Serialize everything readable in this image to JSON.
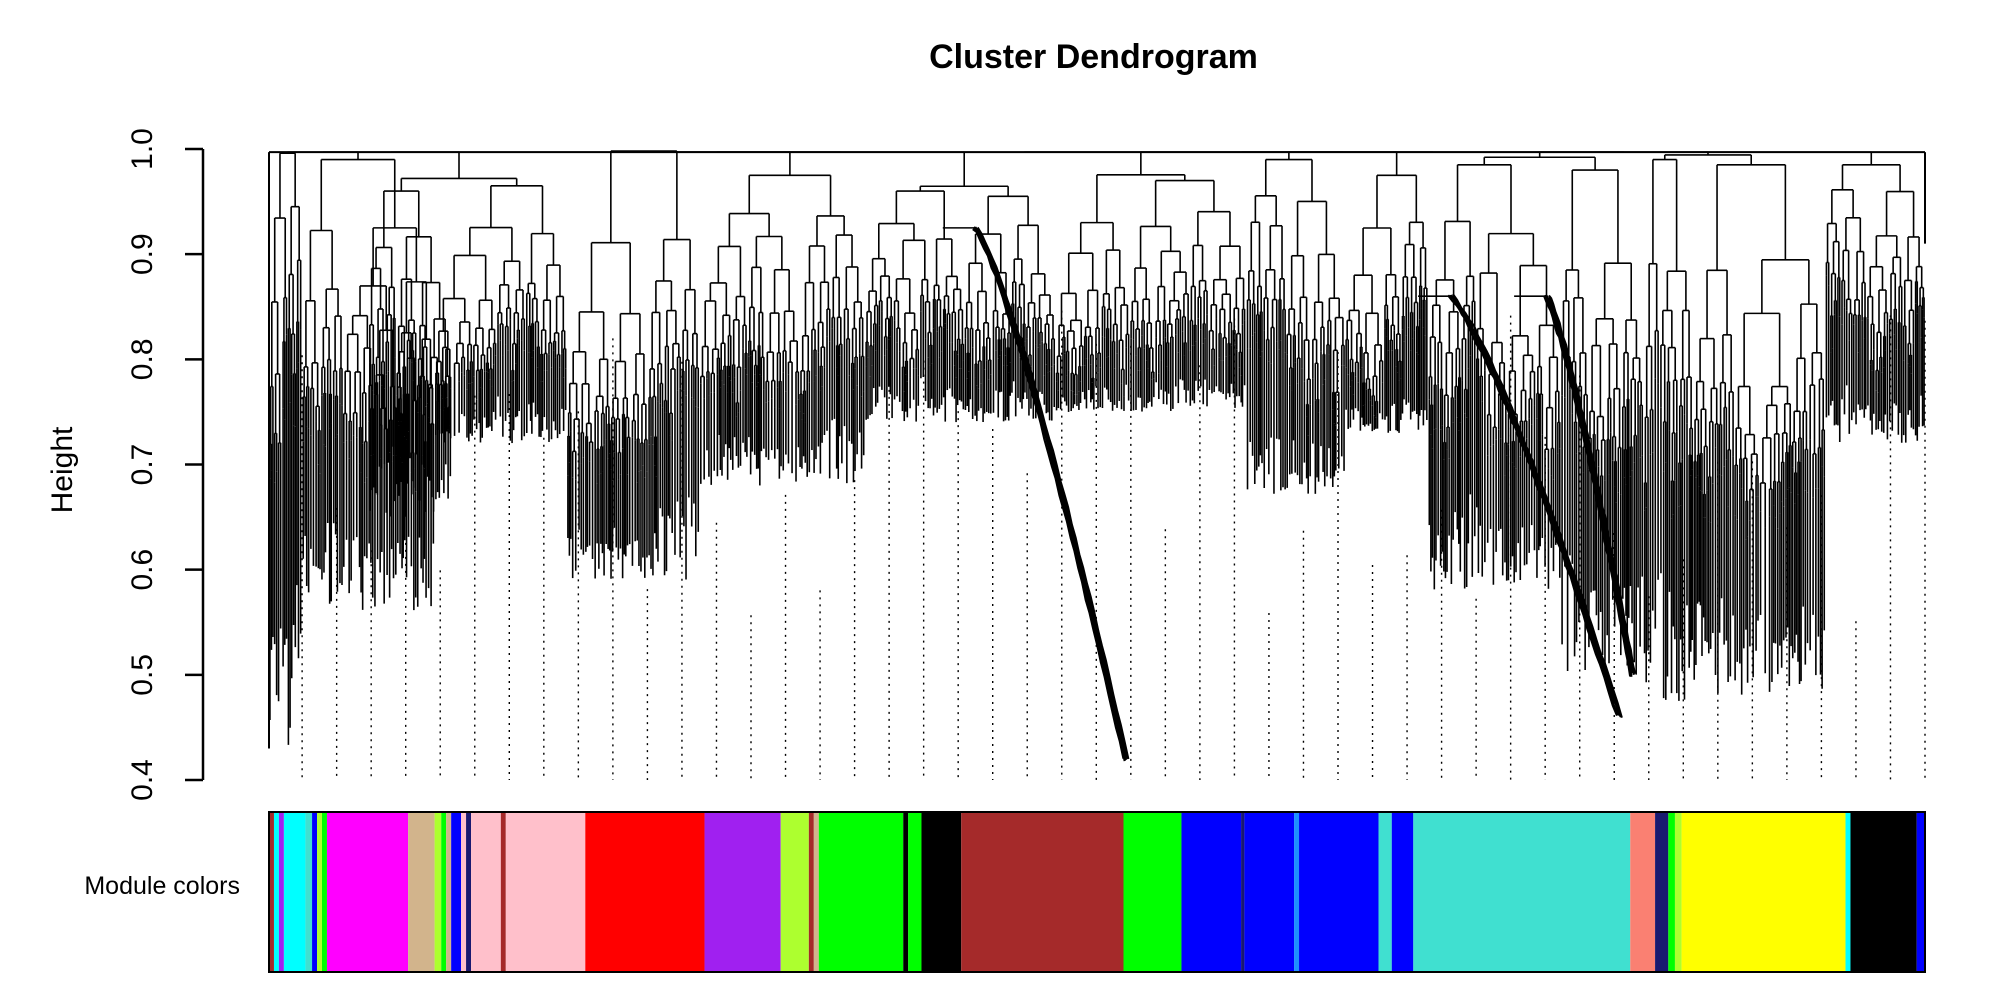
{
  "chart_data": {
    "type": "dendrogram",
    "title": "Cluster Dendrogram",
    "ylabel": "Height",
    "xlabel": "",
    "ylim": [
      0.4,
      1.0
    ],
    "yticks": [
      0.4,
      0.5,
      0.6,
      0.7,
      0.8,
      0.9,
      1.0
    ],
    "ytick_labels": [
      "0.4",
      "0.5",
      "0.6",
      "0.7",
      "0.8",
      "0.9",
      "1.0"
    ],
    "grid": false,
    "root_height": 0.997,
    "clusters": [
      {
        "name": "c1",
        "span": [
          0.0,
          0.02
        ],
        "top": 0.996,
        "min": 0.43
      },
      {
        "name": "c2",
        "span": [
          0.02,
          0.1
        ],
        "top": 0.99,
        "min": 0.56
      },
      {
        "name": "c3",
        "span": [
          0.06,
          0.11
        ],
        "top": 0.96,
        "min": 0.65
      },
      {
        "name": "c4",
        "span": [
          0.1,
          0.18
        ],
        "top": 0.965,
        "min": 0.72
      },
      {
        "name": "c5",
        "span": [
          0.18,
          0.26
        ],
        "top": 0.998,
        "min": 0.59
      },
      {
        "name": "c6",
        "span": [
          0.26,
          0.36
        ],
        "top": 0.975,
        "min": 0.68
      },
      {
        "name": "c7",
        "span": [
          0.36,
          0.42
        ],
        "top": 0.96,
        "min": 0.74
      },
      {
        "name": "c8",
        "span": [
          0.42,
          0.475
        ],
        "top": 0.955,
        "min": 0.74
      },
      {
        "name": "c9",
        "span": [
          0.475,
          0.52
        ],
        "top": 0.93,
        "min": 0.75
      },
      {
        "name": "c10",
        "span": [
          0.52,
          0.59
        ],
        "top": 0.97,
        "min": 0.75
      },
      {
        "name": "c11",
        "span": [
          0.59,
          0.65
        ],
        "top": 0.99,
        "min": 0.67
      },
      {
        "name": "c12",
        "span": [
          0.65,
          0.7
        ],
        "top": 0.975,
        "min": 0.73
      },
      {
        "name": "c13",
        "span": [
          0.7,
          0.78
        ],
        "top": 0.985,
        "min": 0.58
      },
      {
        "name": "c14",
        "span": [
          0.78,
          0.83
        ],
        "top": 0.98,
        "min": 0.5
      },
      {
        "name": "c15",
        "span": [
          0.83,
          0.86
        ],
        "top": 0.99,
        "min": 0.47
      },
      {
        "name": "c16",
        "span": [
          0.86,
          0.94
        ],
        "top": 0.985,
        "min": 0.48
      },
      {
        "name": "c17",
        "span": [
          0.94,
          1.0
        ],
        "top": 0.985,
        "min": 0.72
      }
    ],
    "deep_branches": [
      {
        "name": "d1",
        "x_start": 0.425,
        "x_end": 0.516,
        "top": 0.925,
        "bottom": 0.42
      },
      {
        "name": "d2",
        "x_start": 0.712,
        "x_end": 0.814,
        "top": 0.86,
        "bottom": 0.46
      },
      {
        "name": "d3",
        "x_start": 0.77,
        "x_end": 0.822,
        "top": 0.86,
        "bottom": 0.5
      }
    ],
    "module_colors_label": "Module colors",
    "module_colors": [
      {
        "color": "#A52A2A",
        "start": 0.0,
        "end": 0.003
      },
      {
        "color": "#00FFFF",
        "start": 0.003,
        "end": 0.006
      },
      {
        "color": "#A020F0",
        "start": 0.006,
        "end": 0.009
      },
      {
        "color": "#00FFFF",
        "start": 0.009,
        "end": 0.022
      },
      {
        "color": "#40E0D0",
        "start": 0.022,
        "end": 0.026
      },
      {
        "color": "#0000FF",
        "start": 0.026,
        "end": 0.029
      },
      {
        "color": "#ADFF2F",
        "start": 0.029,
        "end": 0.032
      },
      {
        "color": "#00FF00",
        "start": 0.032,
        "end": 0.035
      },
      {
        "color": "#FF00FF",
        "start": 0.035,
        "end": 0.084
      },
      {
        "color": "#D2B48C",
        "start": 0.084,
        "end": 0.1
      },
      {
        "color": "#ADFF2F",
        "start": 0.1,
        "end": 0.104
      },
      {
        "color": "#00FF00",
        "start": 0.104,
        "end": 0.107
      },
      {
        "color": "#D2B48C",
        "start": 0.107,
        "end": 0.11
      },
      {
        "color": "#0000FF",
        "start": 0.11,
        "end": 0.116
      },
      {
        "color": "#FFC0CB",
        "start": 0.116,
        "end": 0.119
      },
      {
        "color": "#191970",
        "start": 0.119,
        "end": 0.122
      },
      {
        "color": "#FFC0CB",
        "start": 0.122,
        "end": 0.14
      },
      {
        "color": "#A52A2A",
        "start": 0.14,
        "end": 0.143
      },
      {
        "color": "#FFC0CB",
        "start": 0.143,
        "end": 0.191
      },
      {
        "color": "#FF0000",
        "start": 0.191,
        "end": 0.263
      },
      {
        "color": "#A020F0",
        "start": 0.263,
        "end": 0.309
      },
      {
        "color": "#ADFF2F",
        "start": 0.309,
        "end": 0.326
      },
      {
        "color": "#A52A2A",
        "start": 0.326,
        "end": 0.329
      },
      {
        "color": "#D2B48C",
        "start": 0.329,
        "end": 0.332
      },
      {
        "color": "#00FF00",
        "start": 0.332,
        "end": 0.383
      },
      {
        "color": "#000000",
        "start": 0.383,
        "end": 0.386
      },
      {
        "color": "#00FF00",
        "start": 0.386,
        "end": 0.394
      },
      {
        "color": "#000000",
        "start": 0.394,
        "end": 0.418
      },
      {
        "color": "#A52A2A",
        "start": 0.418,
        "end": 0.516
      },
      {
        "color": "#00FF00",
        "start": 0.516,
        "end": 0.551
      },
      {
        "color": "#0000FF",
        "start": 0.551,
        "end": 0.587
      },
      {
        "color": "#191970",
        "start": 0.587,
        "end": 0.589
      },
      {
        "color": "#0000FF",
        "start": 0.589,
        "end": 0.619
      },
      {
        "color": "#1E90FF",
        "start": 0.619,
        "end": 0.622
      },
      {
        "color": "#0000FF",
        "start": 0.622,
        "end": 0.67
      },
      {
        "color": "#40E0D0",
        "start": 0.67,
        "end": 0.678
      },
      {
        "color": "#0000FF",
        "start": 0.678,
        "end": 0.691
      },
      {
        "color": "#40E0D0",
        "start": 0.691,
        "end": 0.822
      },
      {
        "color": "#FA8072",
        "start": 0.822,
        "end": 0.837
      },
      {
        "color": "#191970",
        "start": 0.837,
        "end": 0.845
      },
      {
        "color": "#00FF00",
        "start": 0.845,
        "end": 0.849
      },
      {
        "color": "#ADFF2F",
        "start": 0.849,
        "end": 0.853
      },
      {
        "color": "#FFFF00",
        "start": 0.853,
        "end": 0.952
      },
      {
        "color": "#00FFFF",
        "start": 0.952,
        "end": 0.955
      },
      {
        "color": "#000000",
        "start": 0.955,
        "end": 0.995
      },
      {
        "color": "#0000FF",
        "start": 0.995,
        "end": 1.0
      }
    ]
  }
}
